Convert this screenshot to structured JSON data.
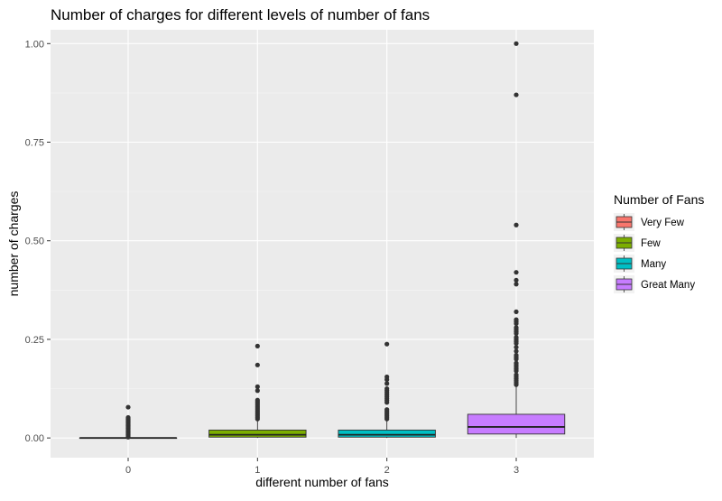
{
  "chart_data": {
    "type": "box",
    "title": "Number of charges for different levels of number of fans",
    "xlabel": "different number of fans",
    "ylabel": "number of charges",
    "categories": [
      "0",
      "1",
      "2",
      "3"
    ],
    "ylim": [
      -0.05,
      1.035
    ],
    "yticks": [
      0.0,
      0.25,
      0.5,
      0.75,
      1.0
    ],
    "ytick_labels": [
      "0.00",
      "0.25",
      "0.50",
      "0.75",
      "1.00"
    ],
    "grid": true,
    "legend_position": "right",
    "legend": {
      "title": "Number of Fans",
      "entries": [
        {
          "label": "Very Few",
          "color": "#F8766D"
        },
        {
          "label": "Few",
          "color": "#7CAE00"
        },
        {
          "label": "Many",
          "color": "#00BFC4"
        },
        {
          "label": "Great Many",
          "color": "#C77CFF"
        }
      ]
    },
    "boxes": [
      {
        "category": "0",
        "color": "#F8766D",
        "min": 0.0,
        "q1": 0.0,
        "median": 0.0,
        "q3": 0.0,
        "max": 0.0,
        "outliers": [
          0.002,
          0.004,
          0.006,
          0.008,
          0.01,
          0.012,
          0.014,
          0.016,
          0.018,
          0.02,
          0.022,
          0.024,
          0.026,
          0.028,
          0.03,
          0.032,
          0.034,
          0.036,
          0.038,
          0.04,
          0.042,
          0.044,
          0.046,
          0.048,
          0.05,
          0.052,
          0.078
        ]
      },
      {
        "category": "1",
        "color": "#7CAE00",
        "min": 0.0,
        "q1": 0.002,
        "median": 0.008,
        "q3": 0.02,
        "max": 0.045,
        "outliers": [
          0.048,
          0.052,
          0.056,
          0.06,
          0.064,
          0.068,
          0.072,
          0.076,
          0.08,
          0.084,
          0.088,
          0.092,
          0.096,
          0.12,
          0.13,
          0.185,
          0.233
        ]
      },
      {
        "category": "2",
        "color": "#00BFC4",
        "min": 0.0,
        "q1": 0.002,
        "median": 0.008,
        "q3": 0.02,
        "max": 0.045,
        "outliers": [
          0.048,
          0.052,
          0.056,
          0.06,
          0.064,
          0.068,
          0.072,
          0.09,
          0.095,
          0.1,
          0.105,
          0.11,
          0.115,
          0.12,
          0.125,
          0.138,
          0.148,
          0.155,
          0.238
        ]
      },
      {
        "category": "3",
        "color": "#C77CFF",
        "min": 0.0,
        "q1": 0.01,
        "median": 0.028,
        "q3": 0.06,
        "max": 0.13,
        "outliers": [
          0.135,
          0.14,
          0.145,
          0.15,
          0.155,
          0.16,
          0.17,
          0.175,
          0.18,
          0.185,
          0.19,
          0.2,
          0.205,
          0.21,
          0.22,
          0.23,
          0.24,
          0.245,
          0.25,
          0.255,
          0.265,
          0.27,
          0.275,
          0.28,
          0.29,
          0.295,
          0.3,
          0.32,
          0.39,
          0.4,
          0.42,
          0.54,
          0.87,
          1.0
        ]
      }
    ]
  }
}
